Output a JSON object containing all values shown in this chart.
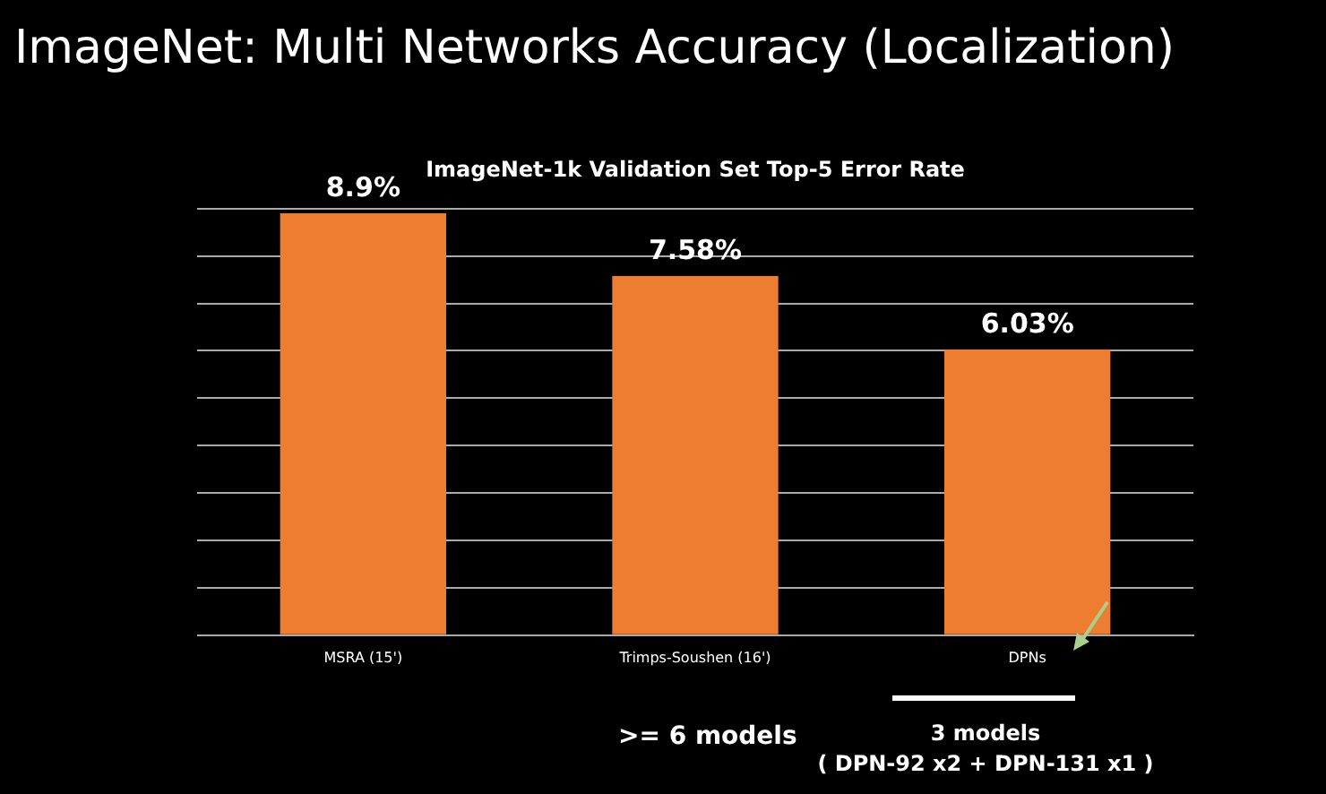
{
  "chart_data": {
    "type": "bar",
    "title": "ImageNet: Multi Networks Accuracy (Localization)",
    "subtitle": "ImageNet-1k Validation Set Top-5 Error Rate",
    "categories": [
      "MSRA (15')",
      "Trimps-Soushen (16')",
      "DPNs"
    ],
    "values": [
      8.9,
      7.58,
      6.03
    ],
    "color": "#ed7d31",
    "value_labels": [
      "8.9%",
      "7.58%",
      "6.03%"
    ],
    "grid": "y",
    "legend": false,
    "annotations": [
      ">= 6 models",
      "3 models",
      "( DPN-92 x2 + DPN-131 x1 )"
    ]
  }
}
